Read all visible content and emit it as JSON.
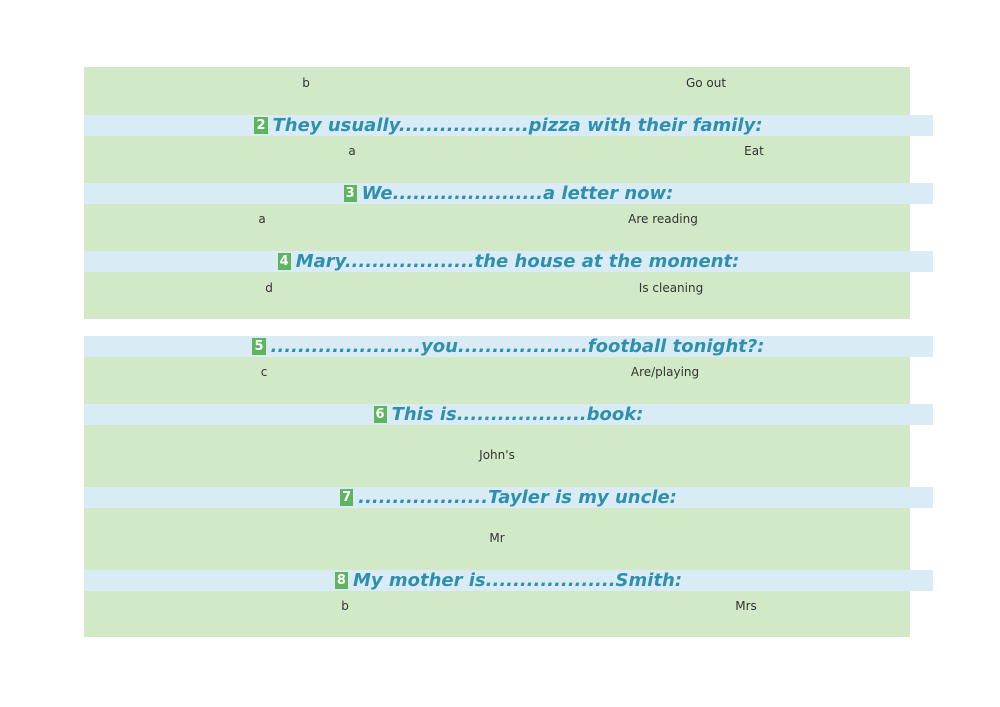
{
  "rows": [
    {
      "letter": "b",
      "answer": "Go out"
    },
    {
      "number": "2",
      "question": "They usually...................pizza with their family:",
      "letter": "a",
      "answer": "Eat"
    },
    {
      "number": "3",
      "question": "We......................a letter now:",
      "letter": "a",
      "answer": "Are reading"
    },
    {
      "number": "4",
      "question": "Mary...................the house at the moment:",
      "letter": "d",
      "answer": "Is cleaning"
    },
    {
      "number": "5",
      "question": "......................you...................football tonight?:",
      "letter": "c",
      "answer": "Are/playing"
    },
    {
      "number": "6",
      "question": "This is...................book:",
      "answer": "John's"
    },
    {
      "number": "7",
      "question": "...................Tayler is my uncle:",
      "answer": "Mr"
    },
    {
      "number": "8",
      "question": "My mother is...................Smith:",
      "letter": "b",
      "answer": "Mrs"
    }
  ]
}
